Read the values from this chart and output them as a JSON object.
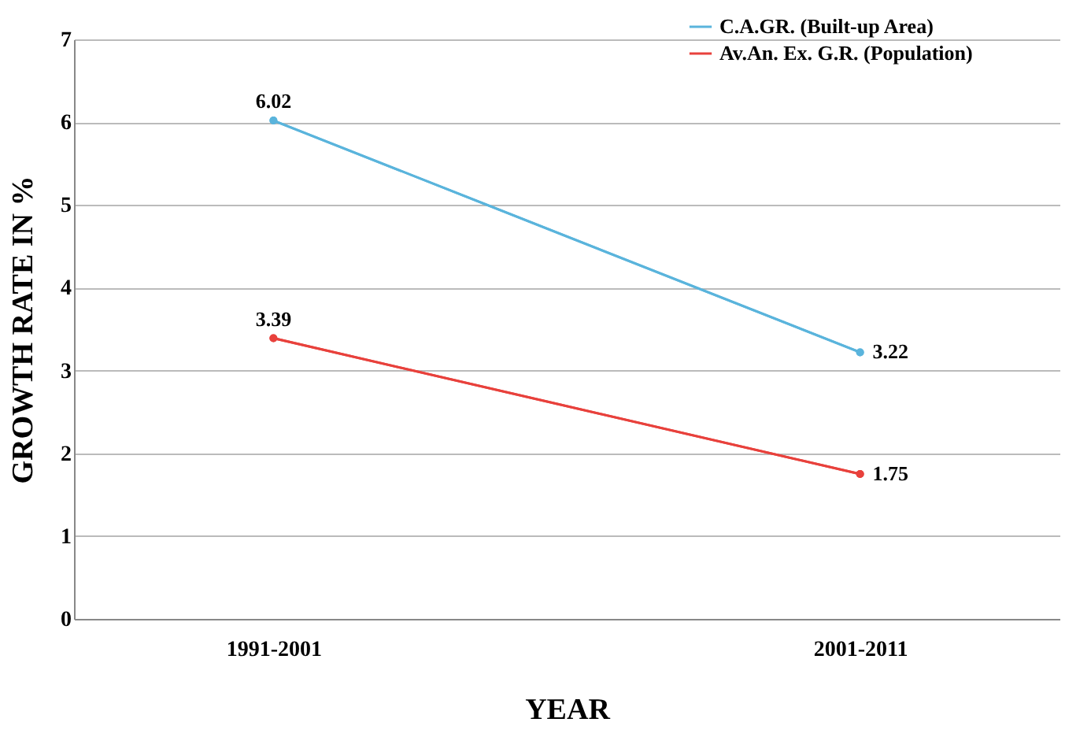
{
  "chart_data": {
    "type": "line",
    "xlabel": "YEAR",
    "ylabel": "GROWTH RATE IN %",
    "categories": [
      "1991-2001",
      "2001-2011"
    ],
    "series": [
      {
        "name": "C.A.GR. (Built-up Area)",
        "color": "#5ab4dc",
        "values": [
          6.02,
          3.22
        ]
      },
      {
        "name": "Av.An. Ex. G.R. (Population)",
        "color": "#e8413c",
        "values": [
          3.39,
          1.75
        ]
      }
    ],
    "ylim": [
      0,
      7
    ],
    "yticks": [
      0,
      1,
      2,
      3,
      4,
      5,
      6,
      7
    ],
    "grid": "y",
    "legend": "top right",
    "marker": "circle",
    "line_style": "solid",
    "data_labels": true
  }
}
